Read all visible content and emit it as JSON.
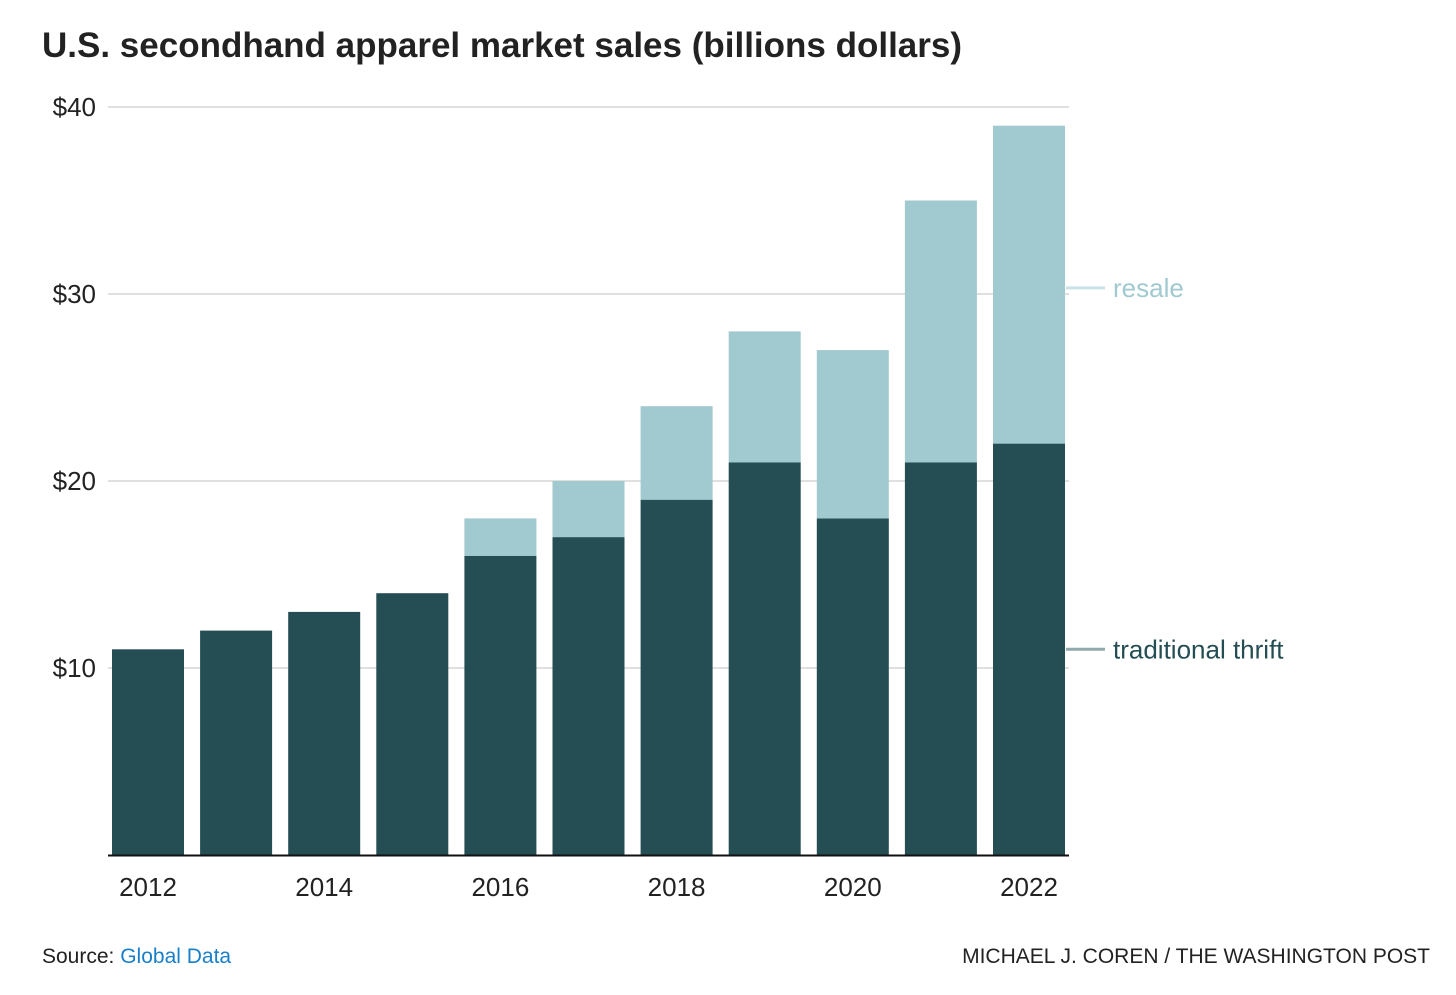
{
  "chart_data": {
    "type": "bar",
    "stacked": true,
    "title": "U.S. secondhand apparel market sales (billions dollars)",
    "xlabel": "",
    "ylabel": "",
    "ylim": [
      0,
      40
    ],
    "yticks": [
      10,
      20,
      30,
      40
    ],
    "ytick_labels": [
      "$10",
      "$20",
      "$30",
      "$40"
    ],
    "categories": [
      "2012",
      "2013",
      "2014",
      "2015",
      "2016",
      "2017",
      "2018",
      "2019",
      "2020",
      "2021",
      "2022"
    ],
    "xtick_labels": [
      "2012",
      "",
      "2014",
      "",
      "2016",
      "",
      "2018",
      "",
      "2020",
      "",
      "2022"
    ],
    "grid": true,
    "series": [
      {
        "name": "traditional thrift",
        "color": "#244d54",
        "legend_line_color": "#8fa9ad",
        "values": [
          11,
          12,
          13,
          14,
          16,
          17,
          19,
          21,
          18,
          21,
          22
        ]
      },
      {
        "name": "resale",
        "color": "#a0c9d0",
        "legend_line_color": "#c9e3e8",
        "values": [
          0,
          0,
          0,
          0,
          2,
          3,
          5,
          7,
          9,
          14,
          17
        ]
      }
    ],
    "legend_placement": "right, inline labels"
  },
  "footer": {
    "source_label": "Source: ",
    "source_link": "Global Data",
    "credit": "MICHAEL J. COREN / THE WASHINGTON POST",
    "link_color": "#1a7fc9"
  }
}
